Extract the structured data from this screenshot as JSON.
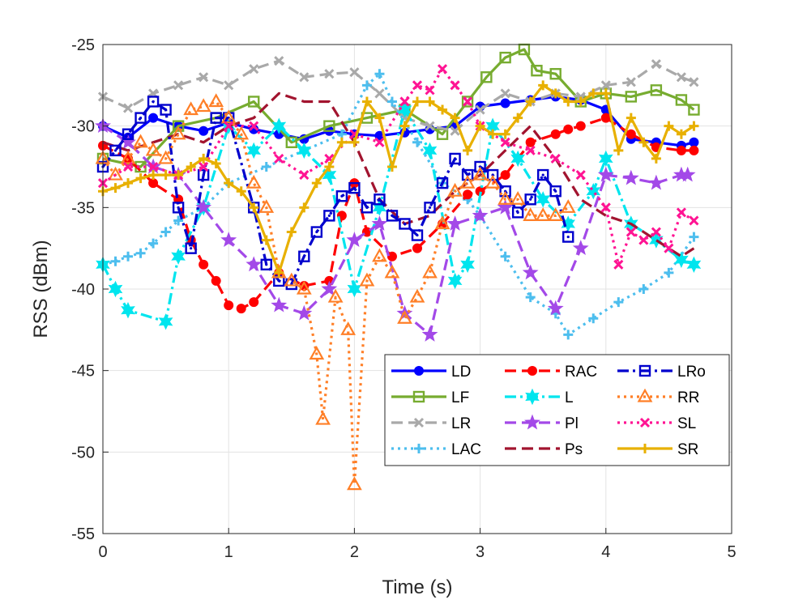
{
  "chart_data": {
    "type": "line",
    "xlabel": "Time (s)",
    "ylabel": "RSS (dBm)",
    "xlim": [
      0,
      5
    ],
    "ylim": [
      -55,
      -25
    ],
    "xticks": [
      "0",
      "1",
      "2",
      "3",
      "4",
      "5"
    ],
    "yticks": [
      "-25",
      "-30",
      "-35",
      "-40",
      "-45",
      "-50",
      "-55"
    ],
    "grid": true,
    "legend_position": "bottom-right",
    "series": [
      {
        "name": "LD",
        "color": "#0000ff",
        "dash": "solid",
        "marker": "circle",
        "x": [
          0,
          0.2,
          0.4,
          0.6,
          0.8,
          1.0,
          1.2,
          1.4,
          1.6,
          1.8,
          2.0,
          2.2,
          2.4,
          2.6,
          2.8,
          3.0,
          3.2,
          3.4,
          3.6,
          3.8,
          4.0,
          4.2,
          4.4,
          4.6,
          4.7
        ],
        "y": [
          -30,
          -30.7,
          -29.5,
          -30.0,
          -30.3,
          -29.8,
          -30.2,
          -30.5,
          -30.8,
          -30.3,
          -30.5,
          -30.6,
          -30.4,
          -30.2,
          -30.0,
          -28.8,
          -28.6,
          -28.4,
          -28.2,
          -28.4,
          -29.0,
          -30.8,
          -31.0,
          -31.2,
          -31.0
        ]
      },
      {
        "name": "LF",
        "color": "#77ac30",
        "dash": "solid",
        "marker": "square",
        "x": [
          0,
          0.3,
          0.6,
          0.9,
          1.2,
          1.5,
          1.8,
          2.1,
          2.4,
          2.7,
          2.9,
          3.05,
          3.2,
          3.35,
          3.45,
          3.6,
          3.8,
          4.0,
          4.2,
          4.4,
          4.6,
          4.7
        ],
        "y": [
          -32.0,
          -32.5,
          -30.0,
          -29.5,
          -28.5,
          -31.0,
          -30.0,
          -29.5,
          -29.0,
          -30.5,
          -28.5,
          -27.0,
          -25.8,
          -25.3,
          -26.6,
          -26.8,
          -28.5,
          -28.0,
          -28.2,
          -27.8,
          -28.4,
          -29.0
        ]
      },
      {
        "name": "LR",
        "color": "#a9a9a9",
        "dash": "dash",
        "marker": "x",
        "x": [
          0,
          0.2,
          0.4,
          0.6,
          0.8,
          1.0,
          1.2,
          1.4,
          1.6,
          1.8,
          2.0,
          2.2,
          2.4,
          2.6,
          2.8,
          3.0,
          3.2,
          3.4,
          3.6,
          3.8,
          4.0,
          4.2,
          4.4,
          4.6,
          4.7
        ],
        "y": [
          -28.2,
          -28.9,
          -28.0,
          -27.5,
          -27.0,
          -27.5,
          -26.5,
          -26.0,
          -27.0,
          -26.8,
          -26.7,
          -28.0,
          -29.5,
          -30.0,
          -30.3,
          -29.0,
          -28.0,
          -28.5,
          -28.0,
          -28.2,
          -27.5,
          -27.3,
          -26.2,
          -27.0,
          -27.3
        ]
      },
      {
        "name": "LAC",
        "color": "#4dbeee",
        "dash": "dot",
        "marker": "plus",
        "x": [
          0,
          0.1,
          0.2,
          0.3,
          0.4,
          0.5,
          0.6,
          0.8,
          1.0,
          1.3,
          1.6,
          1.9,
          2.1,
          2.2,
          2.3,
          2.5,
          2.7,
          2.9,
          3.0,
          3.2,
          3.4,
          3.6,
          3.7,
          3.9,
          4.1,
          4.3,
          4.5,
          4.7
        ],
        "y": [
          -38.5,
          -38.3,
          -38.0,
          -37.8,
          -37.2,
          -36.5,
          -35.8,
          -35.0,
          -33.5,
          -32.5,
          -31.5,
          -30.5,
          -27.5,
          -26.8,
          -28.5,
          -31.0,
          -33.5,
          -34.5,
          -35.5,
          -38.0,
          -40.5,
          -41.5,
          -42.8,
          -41.8,
          -40.8,
          -40.0,
          -39.0,
          -36.8
        ]
      },
      {
        "name": "RAC",
        "color": "#ff0000",
        "dash": "dash",
        "marker": "circle",
        "x": [
          0,
          0.2,
          0.4,
          0.6,
          0.7,
          0.8,
          0.9,
          1.0,
          1.1,
          1.2,
          1.4,
          1.6,
          1.8,
          1.9,
          2.0,
          2.1,
          2.3,
          2.5,
          2.7,
          2.9,
          3.0,
          3.2,
          3.4,
          3.6,
          3.7,
          3.8,
          4.0,
          4.2,
          4.4,
          4.6,
          4.7
        ],
        "y": [
          -31.2,
          -32.0,
          -33.5,
          -34.5,
          -37.0,
          -38.5,
          -39.5,
          -41.0,
          -41.2,
          -40.8,
          -39.0,
          -39.8,
          -39.5,
          -35.5,
          -33.5,
          -36.5,
          -38.0,
          -37.5,
          -36.0,
          -34.2,
          -34.0,
          -33.0,
          -31.0,
          -30.5,
          -30.2,
          -30.0,
          -29.5,
          -30.5,
          -31.3,
          -31.5,
          -31.5
        ]
      },
      {
        "name": "L",
        "color": "#00e5ee",
        "dash": "dashdot",
        "marker": "hexagram",
        "x": [
          0,
          0.1,
          0.2,
          0.5,
          0.6,
          0.8,
          1.0,
          1.2,
          1.4,
          1.6,
          1.8,
          2.0,
          2.2,
          2.4,
          2.6,
          2.8,
          2.9,
          3.1,
          3.3,
          3.5,
          3.7,
          3.9,
          4.0,
          4.2,
          4.4,
          4.6,
          4.7
        ],
        "y": [
          -38.5,
          -40.0,
          -41.3,
          -42.0,
          -38.0,
          -35.0,
          -30.0,
          -31.5,
          -30.0,
          -31.5,
          -33.0,
          -40.0,
          -35.0,
          -29.0,
          -31.5,
          -39.5,
          -38.5,
          -30.0,
          -32.0,
          -34.5,
          -36.0,
          -34.0,
          -32.0,
          -36.0,
          -37.0,
          -38.2,
          -38.5
        ]
      },
      {
        "name": "Pl",
        "color": "#a349e8",
        "dash": "dash",
        "marker": "pentagram",
        "x": [
          0,
          0.2,
          0.4,
          0.6,
          0.8,
          1.0,
          1.2,
          1.4,
          1.6,
          1.8,
          2.0,
          2.2,
          2.4,
          2.6,
          2.8,
          3.0,
          3.2,
          3.4,
          3.6,
          3.8,
          4.0,
          4.2,
          4.4,
          4.6,
          4.65
        ],
        "y": [
          -30.0,
          -31.0,
          -32.5,
          -33.0,
          -35.0,
          -37.0,
          -38.5,
          -41.0,
          -41.5,
          -40.0,
          -37.0,
          -36.0,
          -41.5,
          -42.8,
          -36.0,
          -35.5,
          -35.0,
          -39.0,
          -41.2,
          -37.5,
          -33.0,
          -33.2,
          -33.5,
          -33.0,
          -33.0
        ]
      },
      {
        "name": "Ps",
        "color": "#a2142f",
        "dash": "dash",
        "marker": "none",
        "x": [
          0,
          0.2,
          0.4,
          0.6,
          0.8,
          1.0,
          1.2,
          1.4,
          1.6,
          1.8,
          2.0,
          2.2,
          2.4,
          2.6,
          2.8,
          3.0,
          3.2,
          3.4,
          3.6,
          3.8,
          4.0,
          4.2,
          4.4,
          4.6,
          4.7
        ],
        "y": [
          -31.0,
          -31.5,
          -31.0,
          -30.5,
          -31.0,
          -30.0,
          -29.5,
          -28.0,
          -28.5,
          -28.5,
          -31.0,
          -34.5,
          -36.0,
          -35.5,
          -34.0,
          -33.0,
          -31.5,
          -30.0,
          -32.0,
          -34.5,
          -35.5,
          -36.0,
          -37.0,
          -38.0,
          -37.5
        ]
      },
      {
        "name": "LRo",
        "color": "#0000cd",
        "dash": "dashdot",
        "marker": "square-dot",
        "x": [
          0,
          0.1,
          0.2,
          0.3,
          0.4,
          0.5,
          0.6,
          0.7,
          0.8,
          0.9,
          1.0,
          1.2,
          1.3,
          1.4,
          1.5,
          1.6,
          1.7,
          1.8,
          1.9,
          2.0,
          2.1,
          2.2,
          2.3,
          2.4,
          2.5,
          2.6,
          2.7,
          2.8,
          2.9,
          3.0,
          3.1,
          3.2,
          3.3,
          3.4,
          3.5,
          3.6,
          3.7
        ],
        "y": [
          -32.5,
          -31.5,
          -30.5,
          -29.5,
          -28.5,
          -29.0,
          -35.0,
          -37.5,
          -33.0,
          -29.5,
          -29.5,
          -35.0,
          -38.5,
          -39.5,
          -39.7,
          -38.0,
          -36.5,
          -35.5,
          -34.3,
          -33.8,
          -35.0,
          -34.5,
          -35.5,
          -36.0,
          -36.7,
          -35.0,
          -33.5,
          -32.0,
          -33.0,
          -32.5,
          -33.0,
          -34.0,
          -35.3,
          -34.5,
          -33.0,
          -34.0,
          -36.8
        ]
      },
      {
        "name": "RR",
        "color": "#ff7f27",
        "dash": "dot",
        "marker": "triangle",
        "x": [
          0,
          0.1,
          0.2,
          0.3,
          0.4,
          0.5,
          0.6,
          0.7,
          0.8,
          0.9,
          1.0,
          1.1,
          1.2,
          1.3,
          1.4,
          1.5,
          1.6,
          1.7,
          1.75,
          1.85,
          1.95,
          2.0,
          2.1,
          2.2,
          2.3,
          2.4,
          2.5,
          2.6,
          2.7,
          2.8,
          2.9,
          3.0,
          3.1,
          3.2,
          3.3,
          3.4,
          3.5,
          3.6,
          3.7
        ],
        "y": [
          -32.0,
          -33.0,
          -32.0,
          -31.0,
          -31.5,
          -32.0,
          -30.5,
          -29.0,
          -28.8,
          -28.5,
          -29.5,
          -30.5,
          -33.5,
          -35.0,
          -39.0,
          -39.5,
          -40.0,
          -44.0,
          -48.0,
          -40.5,
          -42.5,
          -52.0,
          -39.5,
          -38.0,
          -39.0,
          -41.8,
          -40.5,
          -39.0,
          -36.0,
          -34.0,
          -33.5,
          -33.0,
          -33.5,
          -34.5,
          -34.5,
          -35.5,
          -35.5,
          -35.5,
          -35.0
        ]
      },
      {
        "name": "SL",
        "color": "#ff1493",
        "dash": "dot",
        "marker": "x",
        "x": [
          0,
          0.2,
          0.4,
          0.6,
          0.8,
          1.0,
          1.2,
          1.4,
          1.6,
          1.8,
          2.0,
          2.2,
          2.4,
          2.5,
          2.6,
          2.7,
          2.8,
          2.9,
          3.0,
          3.2,
          3.4,
          3.6,
          3.8,
          4.0,
          4.1,
          4.2,
          4.3,
          4.4,
          4.5,
          4.6,
          4.7
        ],
        "y": [
          -33.5,
          -32.5,
          -32.5,
          -33.0,
          -32.5,
          -30.0,
          -30.0,
          -32.0,
          -33.0,
          -32.0,
          -30.5,
          -31.0,
          -28.5,
          -27.5,
          -27.8,
          -26.5,
          -27.5,
          -28.5,
          -30.0,
          -31.0,
          -31.5,
          -32.0,
          -33.0,
          -35.0,
          -38.5,
          -36.5,
          -37.0,
          -36.5,
          -37.5,
          -35.3,
          -35.8
        ]
      },
      {
        "name": "SR",
        "color": "#e8b000",
        "dash": "solid",
        "marker": "plus",
        "x": [
          0,
          0.1,
          0.2,
          0.3,
          0.4,
          0.5,
          0.6,
          0.7,
          0.8,
          0.9,
          1.0,
          1.1,
          1.2,
          1.3,
          1.4,
          1.5,
          1.6,
          1.7,
          1.8,
          1.9,
          2.0,
          2.1,
          2.2,
          2.3,
          2.4,
          2.5,
          2.6,
          2.7,
          2.8,
          2.9,
          3.0,
          3.1,
          3.2,
          3.3,
          3.4,
          3.5,
          3.6,
          3.7,
          3.8,
          3.9,
          4.0,
          4.1,
          4.2,
          4.3,
          4.4,
          4.5,
          4.6,
          4.7
        ],
        "y": [
          -34.0,
          -33.8,
          -33.5,
          -33.2,
          -33.0,
          -33.0,
          -33.0,
          -32.5,
          -32.0,
          -32.3,
          -33.5,
          -34.0,
          -35.0,
          -37.0,
          -39.0,
          -36.5,
          -35.0,
          -33.5,
          -32.5,
          -31.0,
          -31.0,
          -28.5,
          -29.5,
          -32.5,
          -30.0,
          -28.5,
          -28.5,
          -29.0,
          -29.5,
          -31.5,
          -30.0,
          -30.5,
          -30.5,
          -29.5,
          -28.5,
          -27.5,
          -28.0,
          -28.5,
          -28.5,
          -28.0,
          -28.0,
          -31.5,
          -29.5,
          -31.0,
          -32.0,
          -30.0,
          -30.5,
          -30.0
        ]
      }
    ]
  }
}
